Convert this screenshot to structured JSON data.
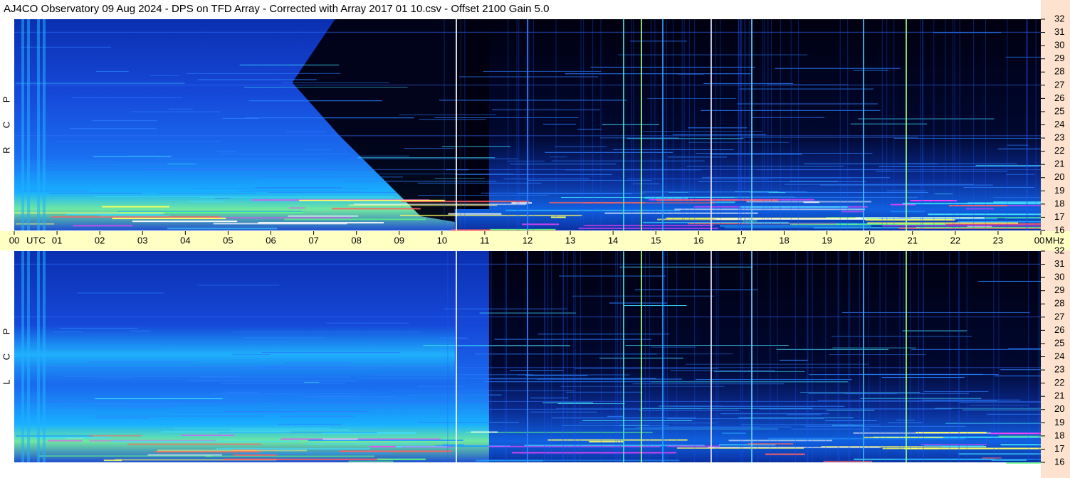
{
  "header": {
    "title": "AJ4CO Observatory  09 Aug 2024  -  DPS on TFD Array  -  Corrected with Array 2017 01 10.csv  -  Offset 2100  Gain 5.0"
  },
  "time_axis": {
    "hours": [
      "00",
      "01",
      "02",
      "03",
      "04",
      "05",
      "06",
      "07",
      "08",
      "09",
      "10",
      "11",
      "12",
      "13",
      "14",
      "15",
      "16",
      "17",
      "18",
      "19",
      "20",
      "21",
      "22",
      "23",
      "00"
    ],
    "utc_label": "UTC",
    "unit_label": "MHz"
  },
  "panels": [
    {
      "letters": [
        "R",
        "C",
        "P"
      ],
      "freq_labels": [
        "32",
        "31",
        "30",
        "29",
        "28",
        "27",
        "26",
        "25",
        "24",
        "23",
        "22",
        "21",
        "20",
        "19",
        "18",
        "17",
        "16"
      ]
    },
    {
      "letters": [
        "L",
        "C",
        "P"
      ],
      "freq_labels": [
        "32",
        "31",
        "30",
        "29",
        "28",
        "27",
        "26",
        "25",
        "24",
        "23",
        "22",
        "21",
        "20",
        "19",
        "18",
        "17",
        "16"
      ]
    }
  ]
}
